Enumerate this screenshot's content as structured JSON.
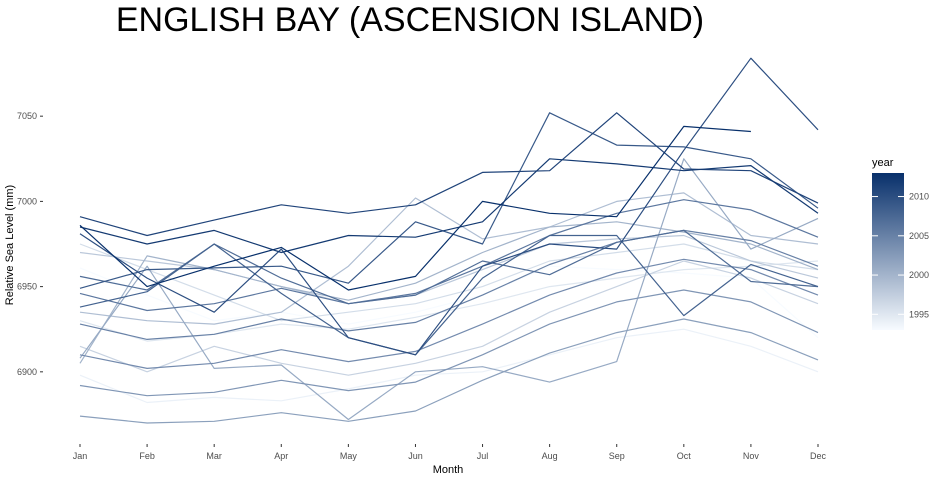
{
  "chart_data": {
    "type": "line",
    "title": "ENGLISH BAY (ASCENSION ISLAND)",
    "xlabel": "Month",
    "ylabel": "Relative Sea Level (mm)",
    "categories": [
      "Jan",
      "Feb",
      "Mar",
      "Apr",
      "May",
      "Jun",
      "Jul",
      "Aug",
      "Sep",
      "Oct",
      "Nov",
      "Dec"
    ],
    "ylim": [
      6860,
      7090
    ],
    "yticks": [
      6900,
      6950,
      7000,
      7050
    ],
    "grid": false,
    "legend": {
      "title": "year",
      "placement": "right",
      "range": [
        1993,
        2013
      ],
      "ticks": [
        1995,
        2000,
        2005,
        2010
      ],
      "color_low": "#f7fbff",
      "color_high": "#08306b"
    },
    "series": [
      {
        "year": 1993,
        "values": [
          6961,
          6945,
          6930,
          6935,
          6928,
          6935,
          6945,
          6962,
          6960,
          6958,
          6955,
          6920
        ]
      },
      {
        "year": 1994,
        "values": [
          6898,
          6882,
          6885,
          6883,
          6890,
          6898,
          6900,
          6910,
          6920,
          6925,
          6915,
          6900
        ]
      },
      {
        "year": 1995,
        "values": [
          6930,
          6918,
          6922,
          6928,
          6925,
          6932,
          6940,
          6950,
          6955,
          6960,
          6962,
          6965
        ]
      },
      {
        "year": 1996,
        "values": [
          6975,
          6960,
          6945,
          6930,
          6935,
          6940,
          6950,
          6965,
          6970,
          6975,
          6965,
          6960
        ]
      },
      {
        "year": 1997,
        "values": [
          6915,
          6900,
          6915,
          6905,
          6898,
          6905,
          6915,
          6935,
          6950,
          6965,
          6955,
          6940
        ]
      },
      {
        "year": 1998,
        "values": [
          6970,
          6965,
          6960,
          6950,
          6940,
          6945,
          6960,
          6975,
          6978,
          6980,
          6965,
          6955
        ]
      },
      {
        "year": 1999,
        "values": [
          6935,
          6930,
          6928,
          6935,
          6962,
          7002,
          6978,
          6985,
          7000,
          7005,
          6980,
          6975
        ]
      },
      {
        "year": 2000,
        "values": [
          6905,
          6968,
          6960,
          6950,
          6942,
          6952,
          6970,
          6985,
          6988,
          6982,
          6975,
          6960
        ]
      },
      {
        "year": 2001,
        "values": [
          6908,
          6962,
          6902,
          6904,
          6872,
          6900,
          6903,
          6894,
          6906,
          7025,
          6972,
          6990
        ]
      },
      {
        "year": 2002,
        "values": [
          6874,
          6870,
          6871,
          6876,
          6871,
          6877,
          6895,
          6911,
          6923,
          6931,
          6923,
          6907
        ]
      },
      {
        "year": 2003,
        "values": [
          6892,
          6886,
          6888,
          6895,
          6889,
          6894,
          6910,
          6928,
          6941,
          6948,
          6941,
          6923
        ]
      },
      {
        "year": 2004,
        "values": [
          6910,
          6902,
          6905,
          6913,
          6906,
          6912,
          6928,
          6945,
          6958,
          6966,
          6960,
          6945
        ]
      },
      {
        "year": 2005,
        "values": [
          6928,
          6919,
          6922,
          6931,
          6924,
          6929,
          6945,
          6963,
          6976,
          6983,
          6977,
          6962
        ]
      },
      {
        "year": 2006,
        "values": [
          6946,
          6936,
          6940,
          6949,
          6940,
          6946,
          6962,
          6980,
          6993,
          7001,
          6995,
          6979
        ]
      },
      {
        "year": 2007,
        "values": [
          6956,
          6948,
          6975,
          6955,
          6940,
          6945,
          6965,
          6957,
          6976,
          6983,
          6953,
          6950
        ]
      },
      {
        "year": 2008,
        "values": [
          6938,
          6947,
          6975,
          6946,
          6920,
          6910,
          6955,
          6980,
          6980,
          6933,
          6963,
          6950
        ]
      },
      {
        "year": 2009,
        "values": [
          6949,
          6960,
          6961,
          6962,
          6952,
          6988,
          6975,
          7052,
          7033,
          7032,
          7025,
          6996
        ]
      },
      {
        "year": 2010,
        "values": [
          6981,
          6955,
          6935,
          6972,
          6920,
          6910,
          6962,
          6975,
          6972,
          7030,
          7084,
          7042
        ]
      },
      {
        "year": 2011,
        "values": [
          6991,
          6980,
          6989,
          6998,
          6993,
          6998,
          7017,
          7018,
          7052,
          7019,
          7018,
          6999
        ]
      },
      {
        "year": 2012,
        "values": [
          6985,
          6975,
          6983,
          6970,
          6980,
          6979,
          6988,
          7025,
          7022,
          7018,
          7021,
          6993
        ]
      },
      {
        "year": 2013,
        "values": [
          6986,
          6950,
          6962,
          6973,
          6948,
          6956,
          7000,
          6993,
          6991,
          7044,
          7041,
          null
        ]
      }
    ]
  }
}
